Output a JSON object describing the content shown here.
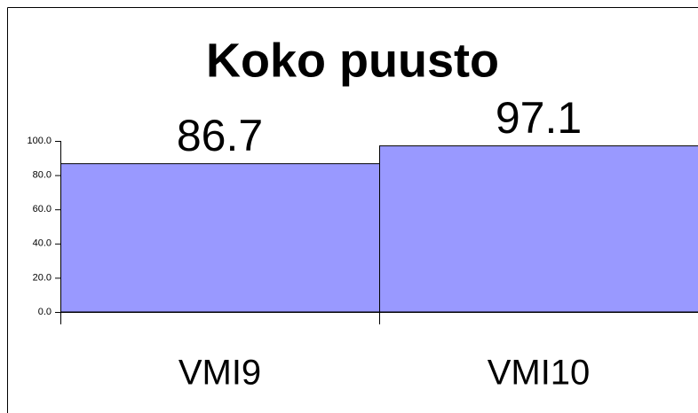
{
  "chart_data": {
    "type": "bar",
    "title": "Koko puusto",
    "categories": [
      "VMI9",
      "VMI10"
    ],
    "values": [
      86.7,
      97.1
    ],
    "color": "#9999ff",
    "ylim": [
      0,
      100
    ],
    "yticks": [
      {
        "value": 0,
        "label": "0.0"
      },
      {
        "value": 20,
        "label": "20.0"
      },
      {
        "value": 40,
        "label": "40.0"
      },
      {
        "value": 60,
        "label": "60.0"
      },
      {
        "value": 80,
        "label": "80.0"
      },
      {
        "value": 100,
        "label": "100.0"
      }
    ],
    "grid": false
  }
}
